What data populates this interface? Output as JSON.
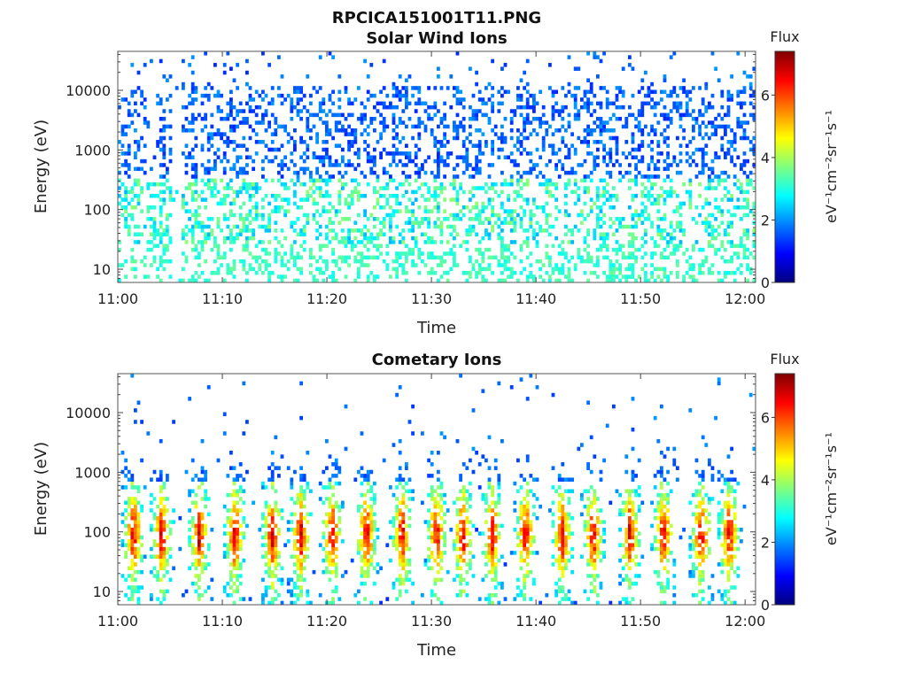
{
  "figure_title": "RPCICA151001T11.PNG",
  "chart_data": [
    {
      "type": "heatmap",
      "id": "solar",
      "title": "Solar Wind Ions",
      "xlabel": "Time",
      "ylabel": "Energy (eV)",
      "x_ticks": [
        "11:00",
        "11:10",
        "11:20",
        "11:30",
        "11:40",
        "11:50",
        "12:00"
      ],
      "x_range_minutes": [
        0,
        61
      ],
      "y_scale": "log",
      "y_range": [
        6,
        45000
      ],
      "y_ticks": [
        10,
        100,
        1000,
        10000
      ],
      "y_tick_labels": [
        "10",
        "100",
        "1000",
        "10000"
      ],
      "colorbar": {
        "title": "Flux",
        "label": "eV⁻¹cm⁻²sr⁻¹s⁻¹",
        "range": [
          0,
          7.4
        ],
        "ticks": [
          0,
          2,
          4,
          6
        ],
        "colormap": "jet"
      },
      "grid": false
    },
    {
      "type": "heatmap",
      "id": "cometary",
      "title": "Cometary Ions",
      "xlabel": "Time",
      "ylabel": "Energy (eV)",
      "x_ticks": [
        "11:00",
        "11:10",
        "11:20",
        "11:30",
        "11:40",
        "11:50",
        "12:00"
      ],
      "x_range_minutes": [
        0,
        61
      ],
      "y_scale": "log",
      "y_range": [
        6,
        45000
      ],
      "y_ticks": [
        10,
        100,
        1000,
        10000
      ],
      "y_tick_labels": [
        "10",
        "100",
        "1000",
        "10000"
      ],
      "colorbar": {
        "title": "Flux",
        "label": "eV⁻¹cm⁻²sr⁻¹s⁻¹",
        "range": [
          0,
          7.4
        ],
        "ticks": [
          0,
          2,
          4,
          6
        ],
        "colormap": "jet"
      },
      "grid": false,
      "burst_times_minutes": [
        1.5,
        4.2,
        7.8,
        11.2,
        14.8,
        17.5,
        20.5,
        23.8,
        27.2,
        30.5,
        33.0,
        35.8,
        39.0,
        42.5,
        45.5,
        49.0,
        52.2,
        55.8,
        58.5
      ]
    }
  ]
}
